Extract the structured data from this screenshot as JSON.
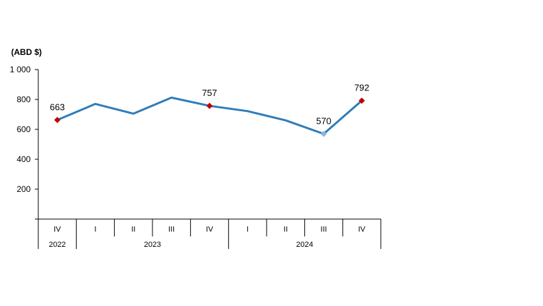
{
  "chart_data": {
    "type": "line",
    "unit_label": "(ABD $)",
    "categories": [
      "IV",
      "I",
      "II",
      "III",
      "IV",
      "I",
      "II",
      "III",
      "IV"
    ],
    "years": [
      {
        "label": "2022",
        "span": 1
      },
      {
        "label": "2023",
        "span": 4
      },
      {
        "label": "2024",
        "span": 4
      }
    ],
    "values": [
      663,
      770,
      705,
      812,
      757,
      722,
      660,
      570,
      792
    ],
    "data_labels": [
      {
        "index": 0,
        "text": "663"
      },
      {
        "index": 4,
        "text": "757"
      },
      {
        "index": 7,
        "text": "570"
      },
      {
        "index": 8,
        "text": "792"
      }
    ],
    "highlight_indices": [
      0,
      4,
      8
    ],
    "low_index": 7,
    "ylim": [
      0,
      1000
    ],
    "yticks": [
      {
        "value": 200,
        "label": "200"
      },
      {
        "value": 400,
        "label": "400"
      },
      {
        "value": 600,
        "label": "600"
      },
      {
        "value": 800,
        "label": "800"
      },
      {
        "value": 1000,
        "label": "1 000"
      }
    ],
    "colors": {
      "line": "#2e7db9",
      "marker_high": "#c00000",
      "marker_low": "#8fb4de",
      "axis": "#000000"
    }
  }
}
